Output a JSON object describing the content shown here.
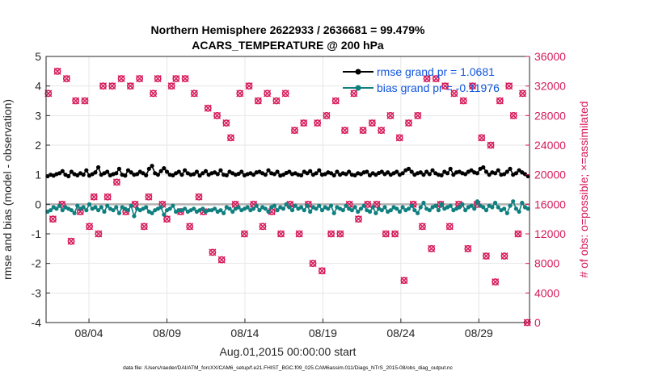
{
  "chart_data": {
    "type": "line",
    "title_line1": "Northern Hemisphere 2622933 / 2636681 = 99.479%",
    "title_line2": "ACARS_TEMPERATURE @ 200 hPa",
    "xlabel": "Aug.01,2015 00:00:00 start",
    "ylabel_left": "rmse and bias (model - observation)",
    "ylabel_right": "# of obs: o=possible; ×=assimilated",
    "footnote": "data file: /Users/raeder/DAI/ATM_forcXX/CAM6_setup/f.e21.FHIST_BGC.f09_025.CAM6assim.011/Diags_NTrS_2015-08/obs_diag_output.nc",
    "xlim": [
      0.75,
      31.75
    ],
    "ylim_left": [
      -4,
      5
    ],
    "ylim_right": [
      0,
      36000
    ],
    "x_ticks": [
      3.5,
      8.5,
      13.5,
      18.5,
      23.5,
      28.5
    ],
    "x_tick_labels": [
      "08/04",
      "08/09",
      "08/14",
      "08/19",
      "08/24",
      "08/29"
    ],
    "y_left_tick_labels": [
      "-4",
      "-3",
      "-2",
      "-1",
      "0",
      "1",
      "2",
      "3",
      "4",
      "5"
    ],
    "y_right_tick_labels": [
      "0",
      "4000",
      "8000",
      "12000",
      "16000",
      "20000",
      "24000",
      "28000",
      "32000",
      "36000"
    ],
    "legend": {
      "rmse_label": "rmse grand pr = 1.0681",
      "bias_label": "bias grand pr = -0.11976",
      "placement": "top-right"
    },
    "colors": {
      "rmse": "#000000",
      "bias": "#0f7f7f",
      "obs": "#d6195a",
      "zero_line": "#b3b3b3",
      "grid": "#e6e6e6"
    },
    "series": [
      {
        "name": "rmse",
        "axis": "left",
        "values": [
          0.95,
          1.0,
          0.97,
          1.02,
          1.05,
          1.12,
          1.0,
          0.95,
          1.1,
          1.02,
          0.98,
          1.05,
          1.0,
          1.15,
          0.97,
          1.02,
          1.08,
          1.25,
          1.0,
          1.05,
          1.1,
          0.98,
          1.02,
          1.05,
          1.2,
          1.0,
          0.97,
          1.15,
          1.08,
          1.0,
          1.02,
          1.1,
          1.05,
          0.98,
          1.2,
          1.3,
          1.05,
          1.0,
          1.12,
          1.22,
          1.1,
          1.0,
          0.98,
          1.05,
          1.1,
          1.0,
          1.15,
          1.05,
          1.0,
          1.02,
          1.1,
          0.97,
          1.05,
          1.12,
          1.0,
          1.05,
          1.08,
          1.02,
          1.15,
          1.0,
          0.98,
          1.1,
          1.05,
          1.0,
          1.03,
          1.1,
          0.98,
          1.02,
          1.05,
          1.0,
          1.08,
          1.1,
          1.05,
          1.0,
          1.15,
          1.05,
          1.02,
          1.1,
          0.97,
          1.0,
          1.06,
          1.1,
          1.02,
          1.05,
          1.0,
          0.98,
          1.1,
          1.05,
          1.12,
          1.0,
          1.05,
          1.15,
          1.0,
          1.02,
          1.08,
          1.05,
          0.98,
          1.1,
          1.0,
          1.05,
          1.02,
          1.1,
          1.0,
          0.98,
          1.05,
          1.02,
          1.08,
          1.1,
          0.98,
          1.05,
          1.0,
          1.06,
          1.1,
          1.02,
          1.08,
          1.0,
          1.05,
          1.1,
          1.0,
          1.05,
          1.15,
          1.2,
          1.1,
          1.0,
          1.05,
          1.08,
          1.0,
          1.1,
          1.02,
          1.15,
          1.05,
          1.0,
          0.98,
          1.1,
          1.05,
          1.2,
          1.0,
          1.08,
          1.1,
          1.05,
          1.02,
          1.1,
          1.15,
          1.08,
          1.05,
          1.2,
          1.25,
          1.1,
          1.0,
          1.08,
          1.05,
          1.15,
          1.0,
          1.02,
          1.1,
          1.2,
          1.0,
          1.05,
          1.15,
          1.08,
          1.02,
          0.95
        ]
      },
      {
        "name": "bias",
        "axis": "left",
        "values": [
          -0.25,
          -0.2,
          -0.1,
          -0.15,
          -0.05,
          -0.2,
          -0.1,
          -0.15,
          -0.2,
          -0.3,
          -0.05,
          -0.15,
          -0.1,
          -0.2,
          0.0,
          -0.15,
          -0.1,
          -0.2,
          -0.1,
          -0.25,
          -0.05,
          -0.15,
          -0.2,
          -0.1,
          -0.3,
          -0.1,
          -0.15,
          -0.2,
          -0.05,
          -0.4,
          -0.15,
          -0.2,
          -0.15,
          -0.1,
          -0.25,
          -0.3,
          -0.2,
          -0.15,
          -0.1,
          -0.35,
          -0.2,
          -0.15,
          -0.05,
          -0.25,
          -0.2,
          -0.2,
          -0.15,
          -0.25,
          -0.2,
          -0.15,
          -0.25,
          -0.2,
          -0.15,
          -0.25,
          -0.2,
          -0.2,
          -0.15,
          -0.25,
          -0.2,
          -0.3,
          -0.1,
          -0.15,
          -0.25,
          -0.15,
          -0.1,
          -0.2,
          -0.15,
          -0.1,
          -0.2,
          -0.15,
          -0.05,
          -0.2,
          -0.1,
          -0.15,
          -0.25,
          -0.1,
          -0.05,
          -0.2,
          -0.1,
          -0.15,
          0.0,
          -0.1,
          -0.2,
          -0.05,
          -0.15,
          -0.1,
          -0.2,
          -0.05,
          -0.25,
          -0.1,
          -0.15,
          -0.05,
          -0.2,
          -0.1,
          -0.15,
          -0.05,
          -0.3,
          -0.1,
          -0.15,
          -0.2,
          -0.05,
          -0.15,
          -0.2,
          -0.1,
          -0.25,
          -0.15,
          -0.05,
          -0.2,
          -0.25,
          -0.1,
          -0.3,
          -0.15,
          -0.2,
          -0.1,
          -0.25,
          -0.2,
          -0.1,
          -0.15,
          -0.25,
          -0.1,
          -0.2,
          -0.15,
          -0.05,
          -0.2,
          -0.3,
          -0.1,
          0.05,
          -0.15,
          -0.2,
          -0.1,
          -0.05,
          -0.2,
          0.0,
          -0.15,
          -0.1,
          -0.05,
          -0.2,
          -0.15,
          -0.1,
          0.0,
          -0.2,
          -0.1,
          -0.05,
          -0.15,
          0.1,
          -0.05,
          -0.1,
          -0.2,
          -0.05,
          -0.1,
          0.05,
          -0.1,
          -0.2,
          -0.15,
          -0.3,
          -0.05,
          0.1,
          -0.15,
          -0.25,
          0.05,
          -0.1,
          -0.15
        ]
      },
      {
        "name": "obs_possible",
        "axis": "right",
        "values": [
          31000,
          14000,
          34000,
          16000,
          33000,
          11000,
          30000,
          15000,
          30000,
          13000,
          17000,
          12000,
          32000,
          17000,
          32000,
          19000,
          33000,
          15000,
          32000,
          16000,
          33000,
          13000,
          17000,
          31000,
          33000,
          16000,
          14000,
          32000,
          33000,
          15000,
          33000,
          13000,
          31000,
          17000,
          15000,
          29000,
          9500,
          28000,
          8500,
          27000,
          25000,
          16000,
          31000,
          12000,
          32000,
          16000,
          30000,
          13000,
          31000,
          15000,
          30000,
          12000,
          31000,
          16000,
          26000,
          12000,
          27000,
          16000,
          8000,
          27000,
          7000,
          28000,
          12000,
          30000,
          12000,
          26000,
          16000,
          31000,
          14000,
          26000,
          16000,
          27000,
          16000,
          26000,
          12000,
          28000,
          12000,
          25000,
          5700,
          27000,
          16000,
          28000,
          13000,
          33000,
          10000,
          33000,
          16000,
          32000,
          13000,
          31000,
          16000,
          30000,
          10000,
          32000,
          16000,
          25000,
          9000,
          24000,
          5500,
          30000,
          9000,
          32000,
          28000,
          12000,
          31000,
          0
        ]
      }
    ]
  }
}
